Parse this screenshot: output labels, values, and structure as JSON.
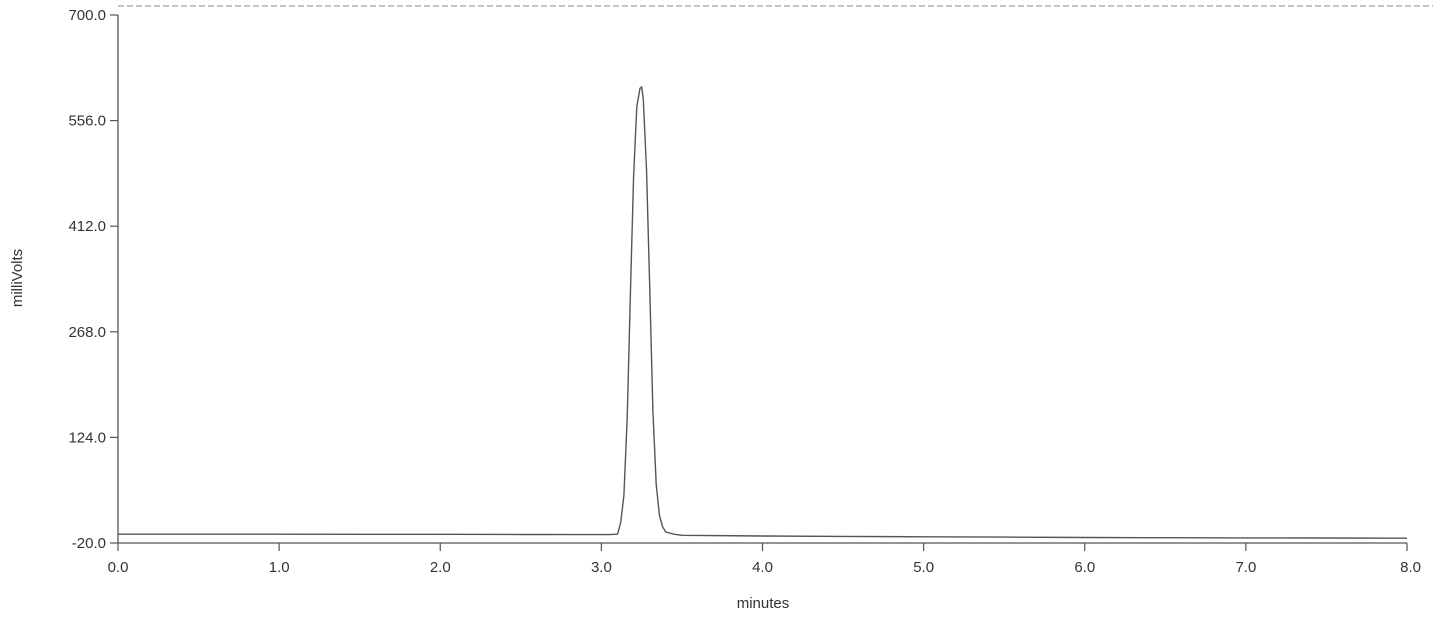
{
  "chart_data": {
    "type": "line",
    "title": "",
    "xlabel": "minutes",
    "ylabel": "milliVolts",
    "xlim": [
      0.0,
      8.0
    ],
    "ylim": [
      -20.0,
      700.0
    ],
    "xticks": [
      0,
      1,
      2,
      3,
      4,
      5,
      6,
      7,
      8
    ],
    "xtick_labels": [
      "0.0",
      "1.0",
      "2.0",
      "3.0",
      "4.0",
      "5.0",
      "6.0",
      "7.0",
      "8.0"
    ],
    "yticks": [
      -20,
      124,
      268,
      412,
      556,
      700
    ],
    "ytick_labels": [
      "-20.0",
      "124.0",
      "268.0",
      "412.0",
      "556.0",
      "700.0"
    ],
    "grid": false,
    "legend": "none",
    "colors": {
      "trace": "#555555",
      "axis": "#555555",
      "top_border": "#888888"
    },
    "series": [
      {
        "x": [
          0.0,
          0.5,
          1.0,
          1.5,
          2.0,
          2.5,
          3.0,
          3.05,
          3.1,
          3.12,
          3.14,
          3.16,
          3.18,
          3.2,
          3.22,
          3.24,
          3.25,
          3.26,
          3.28,
          3.3,
          3.32,
          3.34,
          3.36,
          3.38,
          3.4,
          3.45,
          3.5,
          4.0,
          4.5,
          5.0,
          5.5,
          6.0,
          6.5,
          7.0,
          7.5,
          8.0
        ],
        "y": [
          -8.0,
          -8.0,
          -8.0,
          -8.2,
          -8.2,
          -8.4,
          -8.5,
          -8.5,
          -8.0,
          8.0,
          45.0,
          150.0,
          320.0,
          480.0,
          575.0,
          600.0,
          602.0,
          585.0,
          490.0,
          330.0,
          160.0,
          60.0,
          18.0,
          2.0,
          -5.0,
          -8.0,
          -9.5,
          -10.5,
          -11.0,
          -11.5,
          -12.0,
          -12.5,
          -12.8,
          -13.0,
          -13.2,
          -13.5
        ]
      }
    ]
  }
}
